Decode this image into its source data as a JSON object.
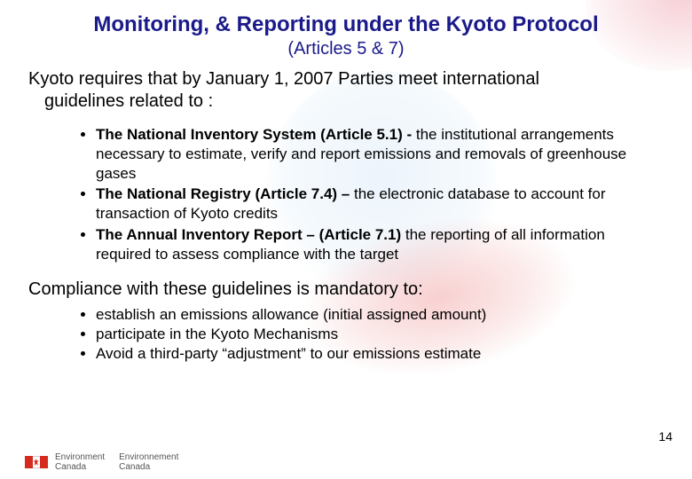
{
  "colors": {
    "title_color": "#1a1a8a",
    "body_color": "#000000",
    "background": "#ffffff",
    "globe_tint": "rgba(180,210,240,0.25)",
    "leaf_tint": "rgba(235,120,120,0.35)",
    "flag_red": "#d52b1e"
  },
  "typography": {
    "title_fontsize": 24,
    "subtitle_fontsize": 20,
    "body_fontsize": 20,
    "bullet_fontsize": 17,
    "pagenum_fontsize": 14,
    "dept_fontsize": 10,
    "font_family": "Arial"
  },
  "title": "Monitoring, & Reporting under the Kyoto Protocol",
  "subtitle": "(Articles 5 & 7)",
  "intro_line1": "Kyoto requires that by January 1, 2007 Parties meet international",
  "intro_line2": "guidelines related to :",
  "bullets_main": [
    {
      "bold": "The National Inventory System (Article 5.1) - ",
      "rest": "the institutional arrangements necessary to estimate, verify and report emissions and removals of greenhouse gases"
    },
    {
      "bold": "The National Registry (Article 7.4) – ",
      "rest": "the electronic database to account for transaction of Kyoto credits"
    },
    {
      "bold": "The Annual Inventory Report – (Article 7.1) ",
      "rest": "the reporting of all information required to assess compliance with the target"
    }
  ],
  "mid_text": "Compliance with these guidelines is mandatory to:",
  "bullets_compliance": [
    "establish an emissions allowance (initial assigned amount)",
    "participate in the Kyoto Mechanisms",
    "Avoid a third-party “adjustment” to our emissions estimate"
  ],
  "page_number": "14",
  "footer": {
    "dept_en_1": "Environment",
    "dept_en_2": "Canada",
    "dept_fr_1": "Environnement",
    "dept_fr_2": "Canada"
  }
}
